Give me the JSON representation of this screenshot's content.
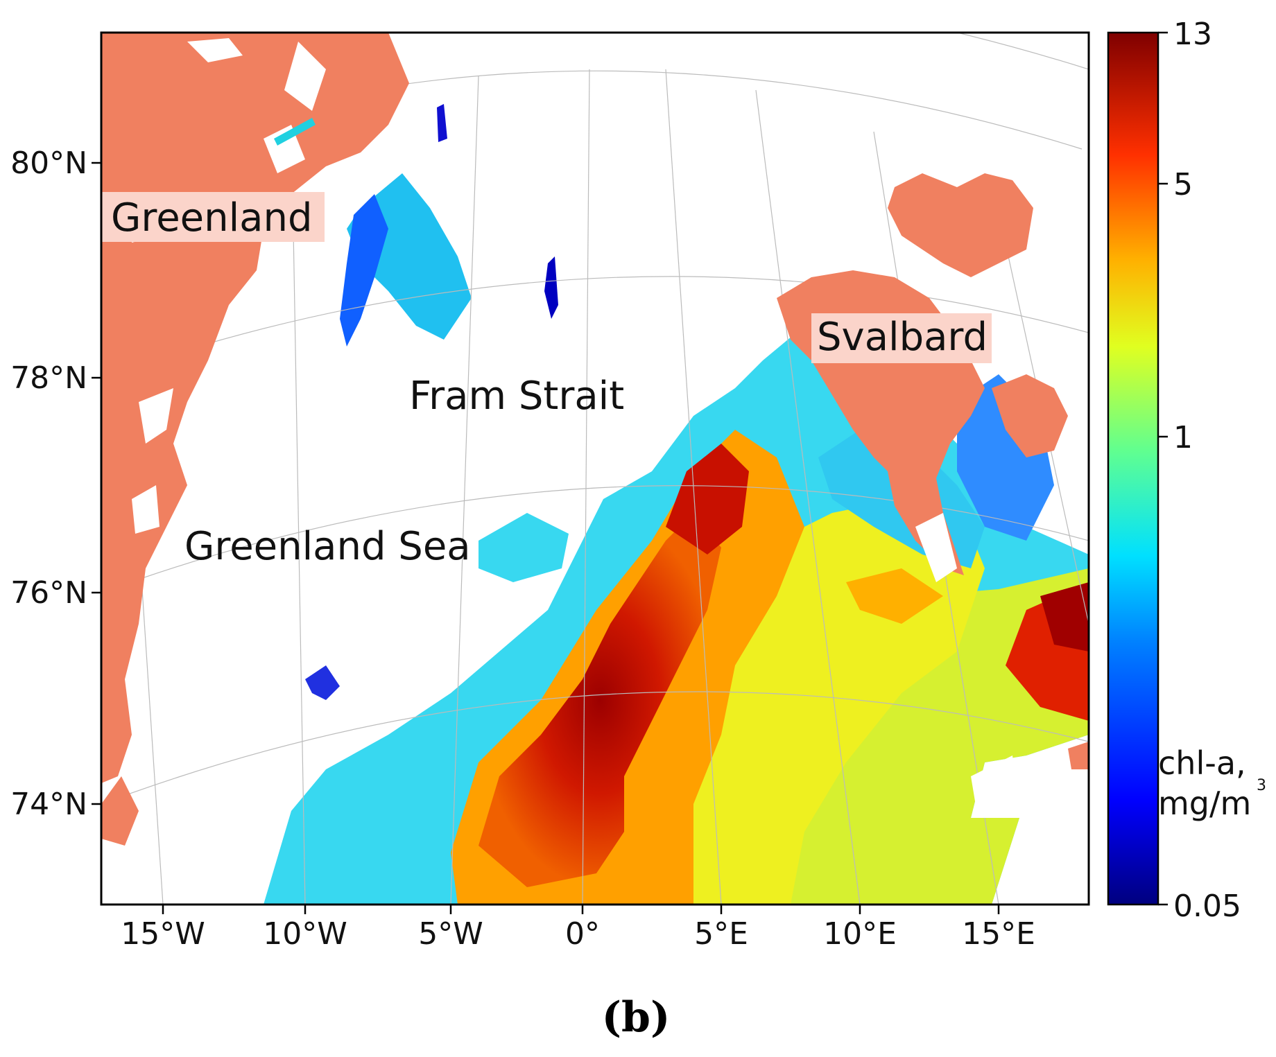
{
  "map": {
    "lat_ticks": [
      {
        "label": "80°N"
      },
      {
        "label": "78°N"
      },
      {
        "label": "76°N"
      },
      {
        "label": "74°N"
      }
    ],
    "lon_ticks": [
      {
        "label": "15°W"
      },
      {
        "label": "10°W"
      },
      {
        "label": "5°W"
      },
      {
        "label": "0°"
      },
      {
        "label": "5°E"
      },
      {
        "label": "10°E"
      },
      {
        "label": "15°E"
      }
    ],
    "place_labels": {
      "greenland": "Greenland",
      "fram_strait": "Fram Strait",
      "greenland_sea": "Greenland Sea",
      "svalbard": "Svalbard"
    },
    "colors": {
      "land": "#f08060",
      "label_box": "#fbd4ca",
      "grid": "#bbbbbb"
    }
  },
  "colorbar": {
    "ticks": [
      "13",
      "5",
      "1",
      "0.05"
    ],
    "label_line1": "chl-a,",
    "label_line2": "mg/m",
    "label_sup": "3",
    "colormap": "jet"
  },
  "panel_label": "(b)"
}
